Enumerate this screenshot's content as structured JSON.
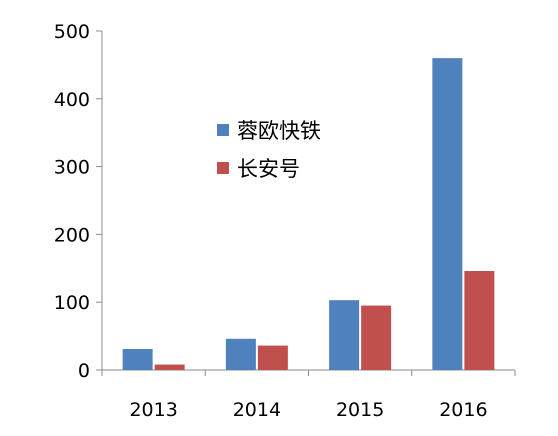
{
  "chart_data": {
    "type": "bar",
    "categories": [
      "2013",
      "2014",
      "2015",
      "2016"
    ],
    "series": [
      {
        "name": "蓉欧快铁",
        "values": [
          31,
          46,
          103,
          460
        ],
        "color": "#4f81bd"
      },
      {
        "name": "长安号",
        "values": [
          8,
          36,
          95,
          146
        ],
        "color": "#c0504d"
      }
    ],
    "ylim": [
      0,
      500
    ],
    "yticks": [
      0,
      100,
      200,
      300,
      400,
      500
    ],
    "grid": false,
    "legend": "upper-center",
    "title": "",
    "xlabel": "",
    "ylabel": ""
  }
}
